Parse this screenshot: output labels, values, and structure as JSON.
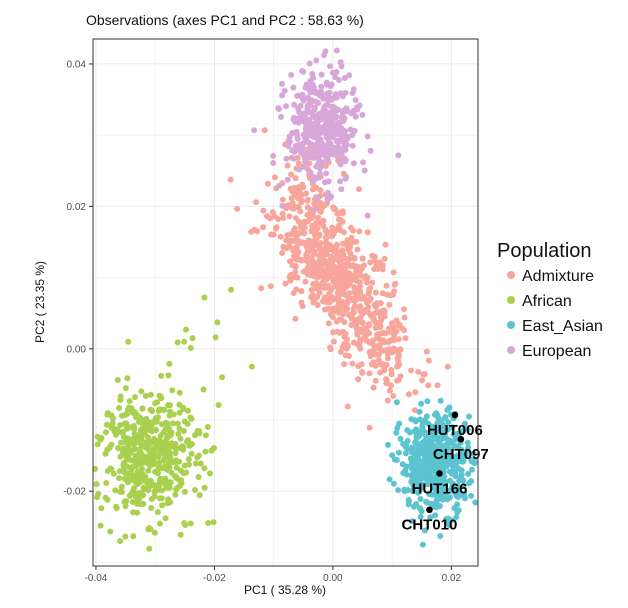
{
  "chart_data": {
    "type": "scatter",
    "title": "Observations (axes PC1 and PC2 :  58.63 %)",
    "xlabel": "PC1 ( 35.28 %)",
    "ylabel": "PC2 ( 23.35 %)",
    "xlim": [
      -0.0405,
      0.0245
    ],
    "ylim": [
      -0.0305,
      0.0435
    ],
    "x_ticks": [
      {
        "value": -0.04,
        "label": "-0.04"
      },
      {
        "value": -0.02,
        "label": "-0.02"
      },
      {
        "value": 0.0,
        "label": "0.00"
      },
      {
        "value": 0.02,
        "label": "0.02"
      }
    ],
    "y_ticks": [
      {
        "value": 0.04,
        "label": "0.04"
      },
      {
        "value": 0.02,
        "label": "0.02"
      },
      {
        "value": 0.0,
        "label": "0.00"
      },
      {
        "value": -0.02,
        "label": "-0.02"
      }
    ],
    "grid": true,
    "legend": {
      "title": "Population",
      "position": "right"
    },
    "series": [
      {
        "name": "Admixture",
        "color": "#F8A59B",
        "clusters": [
          {
            "cx": -0.0005,
            "cy": 0.012,
            "sx": 0.0048,
            "sy": 0.0042,
            "n": 480,
            "rho": -0.55
          },
          {
            "cx": 0.006,
            "cy": 0.002,
            "sx": 0.0045,
            "sy": 0.004,
            "n": 220,
            "rho": -0.55
          },
          {
            "cx": -0.004,
            "cy": 0.022,
            "sx": 0.0025,
            "sy": 0.003,
            "n": 90,
            "rho": -0.2
          }
        ],
        "points": [
          [
            -0.0115,
            0.0307
          ],
          [
            0.0025,
            -0.0081
          ],
          [
            0.0062,
            -0.0111
          ],
          [
            -0.0105,
            0.0088
          ],
          [
            -0.0121,
            0.0085
          ]
        ]
      },
      {
        "name": "African",
        "color": "#A9D04E",
        "clusters": [
          {
            "cx": -0.031,
            "cy": -0.015,
            "sx": 0.0042,
            "sy": 0.0046,
            "n": 480,
            "rho": 0.0
          }
        ],
        "points": [
          [
            -0.0172,
            0.0083
          ],
          [
            -0.0217,
            0.0072
          ],
          [
            -0.0195,
            0.0037
          ],
          [
            -0.0198,
            0.0016
          ],
          [
            -0.0237,
            0.0015
          ],
          [
            -0.0248,
            0.0027
          ],
          [
            -0.0251,
            0.001
          ],
          [
            -0.0262,
            0.0009
          ],
          [
            -0.0276,
            -0.0021
          ],
          [
            -0.029,
            -0.0038
          ],
          [
            -0.0137,
            -0.0025
          ],
          [
            -0.0187,
            -0.004
          ],
          [
            -0.0193,
            -0.0079
          ],
          [
            -0.0205,
            -0.0143
          ],
          [
            -0.0226,
            -0.015
          ],
          [
            -0.0257,
            -0.0261
          ]
        ]
      },
      {
        "name": "East_Asian",
        "color": "#5CC4D1",
        "clusters": [
          {
            "cx": 0.0175,
            "cy": -0.016,
            "sx": 0.0031,
            "sy": 0.0035,
            "n": 460,
            "rho": 0.0
          }
        ],
        "points": [
          [
            0.0108,
            -0.0075
          ],
          [
            0.0112,
            -0.0105
          ],
          [
            0.0093,
            -0.0135
          ],
          [
            0.0182,
            -0.0073
          ],
          [
            0.0152,
            -0.0275
          ],
          [
            0.0223,
            -0.021
          ],
          [
            0.022,
            -0.0185
          ]
        ]
      },
      {
        "name": "European",
        "color": "#D9A6D9",
        "clusters": [
          {
            "cx": -0.0018,
            "cy": 0.0308,
            "sx": 0.003,
            "sy": 0.004,
            "n": 380,
            "rho": 0.0
          }
        ],
        "points": [
          [
            -0.0035,
            0.0386
          ],
          [
            -0.0028,
            0.0405
          ],
          [
            -0.0052,
            0.039
          ],
          [
            -0.0019,
            0.0385
          ],
          [
            -0.0133,
            0.0307
          ]
        ]
      }
    ],
    "annotations": [
      {
        "label": "HUT006",
        "x": 0.0206,
        "y": -0.0093
      },
      {
        "label": "CHT097",
        "x": 0.0216,
        "y": -0.0127
      },
      {
        "label": "HUT166",
        "x": 0.018,
        "y": -0.0175
      },
      {
        "label": "CHT010",
        "x": 0.0163,
        "y": -0.0226
      }
    ]
  }
}
